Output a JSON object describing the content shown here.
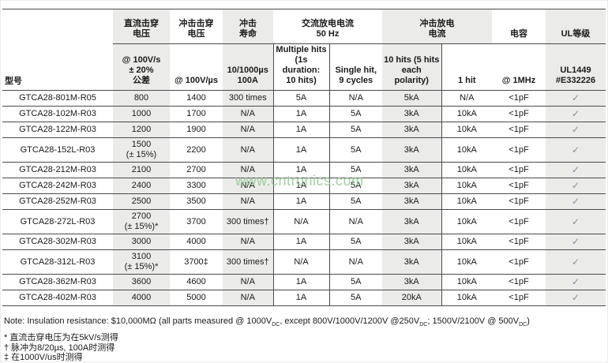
{
  "page": {
    "watermark": "www.cntronics.com"
  },
  "table": {
    "model_header": "型号",
    "group_headers": [
      {
        "label": "直流击穿\n电压"
      },
      {
        "label": "冲击击穿\n电压"
      },
      {
        "label": "冲击\n寿命"
      },
      {
        "label": "交流放电电流\n50 Hz"
      },
      {
        "label": "冲击放电\n电流"
      },
      {
        "label": "电容"
      },
      {
        "label": "UL等级"
      }
    ],
    "sub_headers": [
      "@ 100V/s\n± 20%\n公差",
      "@ 100V/µs",
      "10/1000µs\n100A",
      "Multiple hits\n(1s duration:\n10 hits)",
      "Single hit,\n9 cycles",
      "10 hits (5 hits\neach polarity)",
      "1 hit",
      "@ 1MHz",
      "UL1449\n#E332226"
    ],
    "rows": [
      {
        "cells": [
          "GTCA28-801M-R05",
          "800",
          "1400",
          "300 times",
          "5A",
          "N/A",
          "5kA",
          "N/A",
          "<1pF",
          "✓"
        ]
      },
      {
        "cells": [
          "GTCA28-102M-R03",
          "1000",
          "1700",
          "N/A",
          "1A",
          "5A",
          "3kA",
          "10kA",
          "<1pF",
          "✓"
        ]
      },
      {
        "cells": [
          "GTCA28-122M-R03",
          "1200",
          "1900",
          "N/A",
          "1A",
          "5A",
          "3kA",
          "10kA",
          "<1pF",
          "✓"
        ]
      },
      {
        "cells": [
          "GTCA28-152L-R03",
          "1500\n(± 15%)",
          "2200",
          "N/A",
          "1A",
          "5A",
          "3kA",
          "10kA",
          "<1pF",
          "✓"
        ]
      },
      {
        "cells": [
          "GTCA28-212M-R03",
          "2100",
          "2700",
          "N/A",
          "1A",
          "5A",
          "3kA",
          "10kA",
          "<1pF",
          "✓"
        ]
      },
      {
        "cells": [
          "GTCA28-242M-R03",
          "2400",
          "3300",
          "N/A",
          "1A",
          "5A",
          "3kA",
          "10kA",
          "<1pF",
          "✓"
        ]
      },
      {
        "cells": [
          "GTCA28-252M-R03",
          "2500",
          "3500",
          "N/A",
          "1A",
          "5A",
          "3kA",
          "10kA",
          "<1pF",
          "✓"
        ]
      },
      {
        "cells": [
          "GTCA28-272L-R03",
          "2700\n(± 15%)*",
          "3700",
          "300 times†",
          "N/A",
          "N/A",
          "3kA",
          "10kA",
          "<1pF",
          "✓"
        ]
      },
      {
        "cells": [
          "GTCA28-302M-R03",
          "3000",
          "4000",
          "N/A",
          "1A",
          "5A",
          "3kA",
          "10kA",
          "<1pF",
          "✓"
        ]
      },
      {
        "cells": [
          "GTCA28-312L-R03",
          "3100\n(± 15%)*",
          "3700‡",
          "300 times†",
          "N/A",
          "N/A",
          "3kA",
          "10kA",
          "<1pF",
          "✓"
        ]
      },
      {
        "cells": [
          "GTCA28-362M-R03",
          "3600",
          "4600",
          "N/A",
          "1A",
          "5A",
          "3kA",
          "10kA",
          "<1pF",
          "✓"
        ]
      },
      {
        "cells": [
          "GTCA28-402M-R03",
          "4000",
          "5000",
          "N/A",
          "1A",
          "5A",
          "20kA",
          "10kA",
          "<1pF",
          "✓"
        ]
      }
    ]
  },
  "note": {
    "parts": [
      {
        "t": "Note: Insulation resistance: $10,000MΩ (all parts measured @ 1000V"
      },
      {
        "t": "DC"
      },
      {
        "t": ", except 800V/1000V/1200V @250V"
      },
      {
        "t": "DC"
      },
      {
        "t": "; 1500V/2100V @ 500V"
      },
      {
        "t": "DC"
      },
      {
        "t": ")"
      }
    ]
  },
  "footnotes": [
    "* 直流击穿电压为在5kV/s测得",
    "† 脉冲为8/20µs, 100A时测得",
    "‡ 在1000V/us时测得"
  ]
}
